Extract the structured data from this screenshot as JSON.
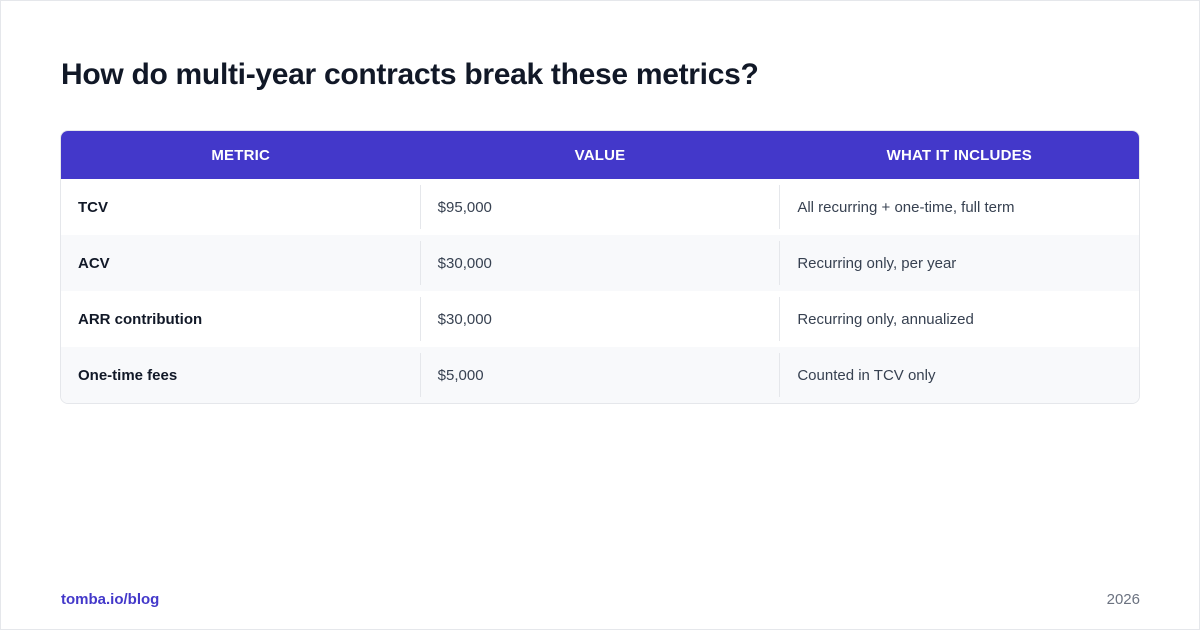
{
  "title": "How do multi-year contracts break these metrics?",
  "table": {
    "headers": [
      "METRIC",
      "VALUE",
      "WHAT IT INCLUDES"
    ],
    "rows": [
      {
        "metric": "TCV",
        "value": "$95,000",
        "includes": "All recurring + one-time, full term"
      },
      {
        "metric": "ACV",
        "value": "$30,000",
        "includes": "Recurring only, per year"
      },
      {
        "metric": "ARR contribution",
        "value": "$30,000",
        "includes": "Recurring only, annualized"
      },
      {
        "metric": "One-time fees",
        "value": "$5,000",
        "includes": "Counted in TCV only"
      }
    ]
  },
  "footer": {
    "link": "tomba.io/blog",
    "year": "2026"
  },
  "colors": {
    "accent": "#4338ca",
    "title": "#111827",
    "alt_row": "#f8f9fb"
  }
}
